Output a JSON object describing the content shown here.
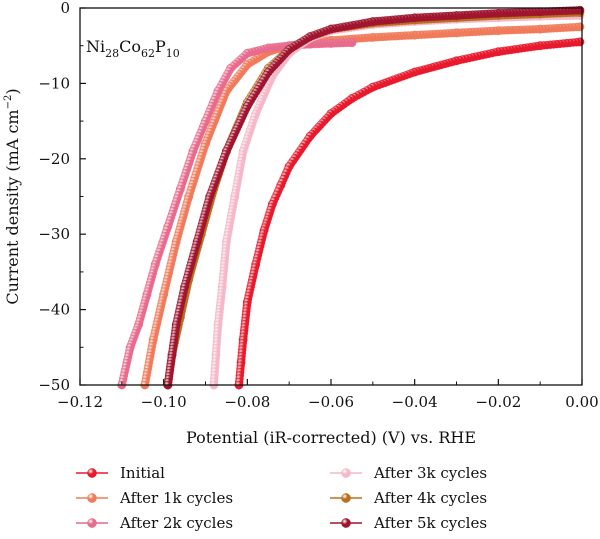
{
  "chart_data": {
    "type": "line",
    "xlabel": "Potential (iR-corrected) (V) vs. RHE",
    "ylabel": "Current density (mA cm",
    "ylabel_sup": "−2",
    "ylabel_tail": ")",
    "xlim": [
      -0.12,
      0.0
    ],
    "ylim": [
      -50,
      0
    ],
    "x_ticks": [
      -0.12,
      -0.1,
      -0.08,
      -0.06,
      -0.04,
      -0.02,
      0.0
    ],
    "x_tick_labels": [
      "−0.12",
      "−0.10",
      "−0.08",
      "−0.06",
      "−0.04",
      "−0.02",
      "0.00"
    ],
    "y_ticks": [
      0,
      -10,
      -20,
      -30,
      -40,
      -50
    ],
    "y_tick_labels": [
      "0",
      "−10",
      "−20",
      "−30",
      "−40",
      "−50"
    ],
    "grid": false,
    "legend_position": "bottom",
    "annotation": {
      "parts": [
        {
          "text": "Ni",
          "sub": false
        },
        {
          "text": "28",
          "sub": true
        },
        {
          "text": "Co",
          "sub": false
        },
        {
          "text": "62",
          "sub": true
        },
        {
          "text": "P",
          "sub": false
        },
        {
          "text": "10",
          "sub": true
        }
      ]
    },
    "series": [
      {
        "name": "Initial",
        "color": "#e8192c",
        "x": [
          -0.0005,
          -0.01,
          -0.02,
          -0.03,
          -0.04,
          -0.05,
          -0.055,
          -0.06,
          -0.065,
          -0.07,
          -0.072,
          -0.074,
          -0.076,
          -0.078,
          -0.08,
          -0.081,
          -0.0815,
          -0.082
        ],
        "y": [
          -4.5,
          -5.0,
          -5.8,
          -7.0,
          -8.5,
          -10.5,
          -12.0,
          -14.0,
          -17.0,
          -21.0,
          -23.5,
          -26.0,
          -29.5,
          -34.0,
          -39.0,
          -44.0,
          -47.0,
          -50.0
        ]
      },
      {
        "name": "After 1k cycles",
        "color": "#f07a5a",
        "x": [
          -0.0005,
          -0.01,
          -0.02,
          -0.03,
          -0.04,
          -0.05,
          -0.06,
          -0.065,
          -0.07,
          -0.075,
          -0.08,
          -0.085,
          -0.09,
          -0.094,
          -0.097,
          -0.1,
          -0.1025,
          -0.1045
        ],
        "y": [
          -2.5,
          -2.8,
          -3.0,
          -3.3,
          -3.6,
          -3.9,
          -4.3,
          -4.6,
          -5.0,
          -5.8,
          -7.5,
          -11.0,
          -18.0,
          -25.0,
          -31.0,
          -38.0,
          -44.0,
          -50.0
        ]
      },
      {
        "name": "After 2k cycles",
        "color": "#e86a8c",
        "x": [
          -0.055,
          -0.06,
          -0.065,
          -0.07,
          -0.075,
          -0.08,
          -0.084,
          -0.087,
          -0.09,
          -0.093,
          -0.096,
          -0.099,
          -0.102,
          -0.104,
          -0.106,
          -0.108,
          -0.11
        ],
        "y": [
          -4.6,
          -4.7,
          -4.8,
          -5.0,
          -5.3,
          -6.0,
          -8.0,
          -11.0,
          -15.0,
          -19.0,
          -24.0,
          -29.0,
          -34.0,
          -38.0,
          -42.0,
          -45.0,
          -50.0
        ]
      },
      {
        "name": "After 3k cycles",
        "color": "#f5b8c8",
        "x": [
          -0.0005,
          -0.01,
          -0.02,
          -0.03,
          -0.04,
          -0.05,
          -0.06,
          -0.065,
          -0.07,
          -0.074,
          -0.078,
          -0.081,
          -0.083,
          -0.085,
          -0.086,
          -0.087,
          -0.0875,
          -0.088
        ],
        "y": [
          -1.0,
          -1.1,
          -1.3,
          -1.5,
          -1.8,
          -2.2,
          -3.0,
          -4.0,
          -6.0,
          -9.0,
          -14.0,
          -19.0,
          -25.0,
          -31.0,
          -37.0,
          -42.0,
          -46.0,
          -50.0
        ]
      },
      {
        "name": "After 4k cycles",
        "color": "#b87020",
        "x": [
          -0.0005,
          -0.01,
          -0.02,
          -0.03,
          -0.04,
          -0.05,
          -0.06,
          -0.065,
          -0.07,
          -0.075,
          -0.08,
          -0.085,
          -0.088,
          -0.091,
          -0.094,
          -0.096,
          -0.098,
          -0.099
        ],
        "y": [
          -0.6,
          -0.8,
          -1.0,
          -1.3,
          -1.6,
          -2.0,
          -2.8,
          -3.8,
          -5.5,
          -8.0,
          -12.5,
          -19.0,
          -24.0,
          -30.0,
          -36.0,
          -41.0,
          -46.0,
          -50.0
        ]
      },
      {
        "name": "After 5k cycles",
        "color": "#a0142e",
        "x": [
          -0.0005,
          -0.01,
          -0.02,
          -0.03,
          -0.04,
          -0.05,
          -0.06,
          -0.065,
          -0.07,
          -0.075,
          -0.08,
          -0.085,
          -0.089,
          -0.092,
          -0.095,
          -0.097,
          -0.098,
          -0.099
        ],
        "y": [
          -0.3,
          -0.5,
          -0.7,
          -1.0,
          -1.3,
          -1.8,
          -2.8,
          -3.8,
          -5.5,
          -8.5,
          -13.0,
          -19.0,
          -25.0,
          -31.0,
          -37.0,
          -42.0,
          -46.0,
          -50.0
        ]
      }
    ]
  }
}
